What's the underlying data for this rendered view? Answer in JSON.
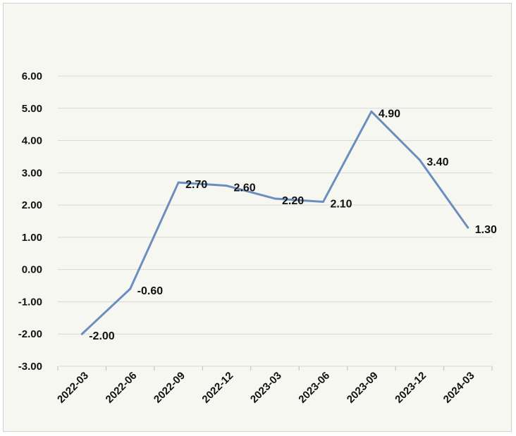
{
  "chart_data": {
    "type": "line",
    "title": "",
    "xlabel": "",
    "ylabel": "",
    "categories": [
      "2022-03",
      "2022-06",
      "2022-09",
      "2022-12",
      "2023-03",
      "2023-06",
      "2023-09",
      "2023-12",
      "2024-03"
    ],
    "series": [
      {
        "values": [
          -2.0,
          -0.6,
          2.7,
          2.6,
          2.2,
          2.1,
          4.9,
          3.4,
          1.3
        ],
        "data_labels": [
          "-2.00",
          "-0.60",
          "2.70",
          "2.60",
          "2.20",
          "2.10",
          "4.90",
          "3.40",
          "1.30"
        ],
        "color": "#6c8ebf"
      }
    ],
    "ylim": [
      -3,
      6
    ],
    "y_ticks": [
      6,
      5,
      4,
      3,
      2,
      1,
      0,
      -1,
      -2,
      -3
    ],
    "y_tick_labels": [
      "6.00",
      "5.00",
      "4.00",
      "3.00",
      "2.00",
      "1.00",
      "0.00",
      "-1.00",
      "-2.00",
      "-3.00"
    ],
    "grid": true,
    "legend": "none",
    "colors": {
      "background": "#f7f7f2",
      "grid": "#d9d9d9",
      "line": "#6c8ebf",
      "text": "#111111"
    }
  }
}
